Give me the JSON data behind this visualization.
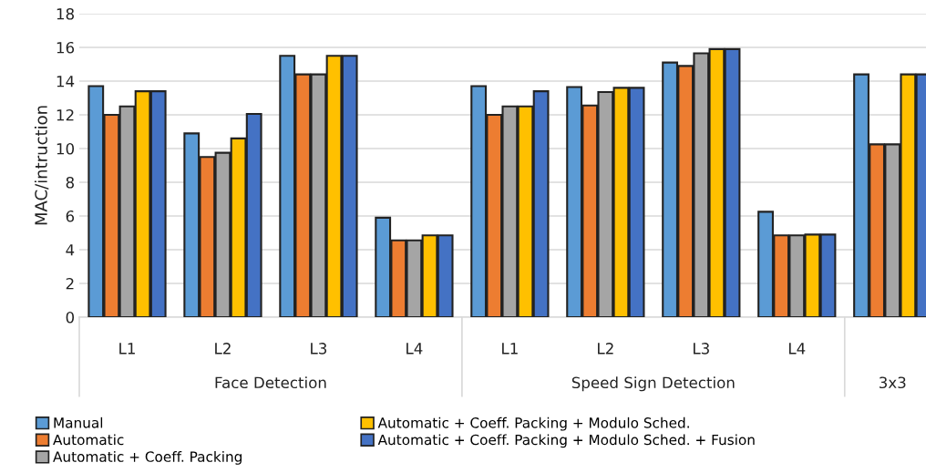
{
  "chart_data": {
    "type": "bar",
    "categories": [
      "L1",
      "L2",
      "L3",
      "L4",
      "L1",
      "L2",
      "L3",
      "L4",
      null
    ],
    "ylabel": "MAC/intruction",
    "ylim": [
      0,
      18
    ],
    "yticks": [
      0,
      2,
      4,
      6,
      8,
      10,
      12,
      14,
      16,
      18
    ],
    "grid": "y",
    "legend": "bottom",
    "annotations": [
      "Face Detection",
      "Speed Sign Detection",
      "3x3"
    ],
    "series": [
      {
        "name": "Manual",
        "color": "#5b9bd5",
        "values": [
          13.7,
          10.9,
          15.5,
          5.9,
          13.7,
          13.65,
          15.1,
          6.25,
          14.4
        ]
      },
      {
        "name": "Automatic",
        "color": "#ed7d31",
        "values": [
          12.0,
          9.5,
          14.4,
          4.55,
          12.0,
          12.55,
          14.9,
          4.85,
          10.25
        ]
      },
      {
        "name": "Automatic + Coeff. Packing",
        "color": "#a5a5a5",
        "values": [
          12.5,
          9.75,
          14.4,
          4.55,
          12.5,
          13.35,
          15.65,
          4.85,
          10.25
        ]
      },
      {
        "name": "Automatic + Coeff. Packing + Modulo Sched.",
        "color": "#ffc000",
        "values": [
          13.4,
          10.6,
          15.5,
          4.85,
          12.5,
          13.6,
          15.9,
          4.9,
          14.4
        ]
      },
      {
        "name": "Automatic + Coeff. Packing + Modulo Sched. + Fusion",
        "color": "#4472c4",
        "values": [
          13.4,
          12.05,
          15.5,
          4.85,
          13.4,
          13.6,
          15.9,
          4.9,
          14.4
        ]
      }
    ]
  }
}
